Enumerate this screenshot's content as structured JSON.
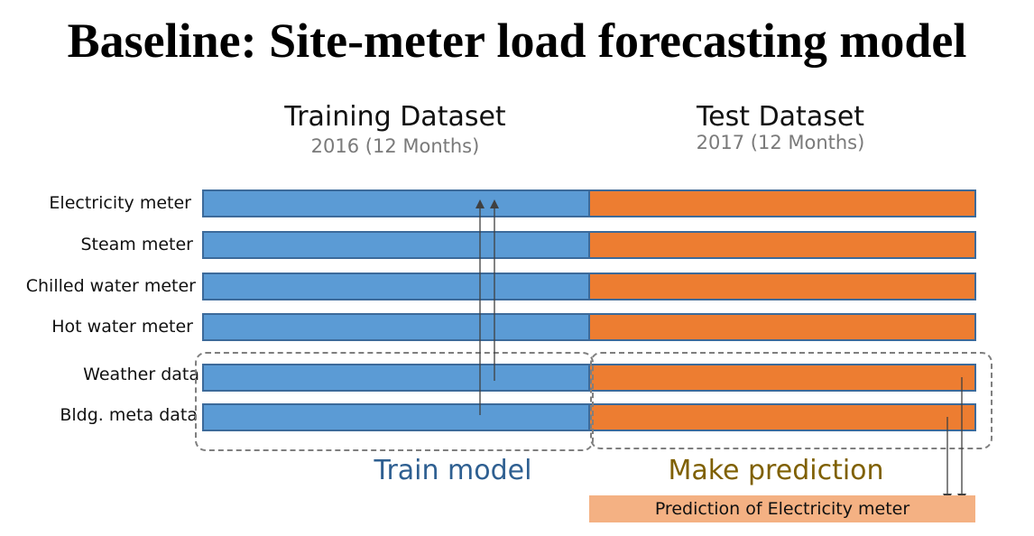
{
  "title": "Baseline: Site-meter load forecasting model",
  "training": {
    "title": "Training Dataset",
    "subtitle": "2016 (12 Months)"
  },
  "test": {
    "title": "Test Dataset",
    "subtitle": "2017 (12 Months)"
  },
  "rows": [
    {
      "label": "Electricity meter"
    },
    {
      "label": "Steam meter"
    },
    {
      "label": "Chilled water meter"
    },
    {
      "label": "Hot water meter"
    },
    {
      "label": "Weather data"
    },
    {
      "label": "Bldg. meta data"
    }
  ],
  "phases": {
    "train": "Train model",
    "predict": "Make prediction"
  },
  "prediction_box": "Prediction of Electricity meter",
  "colors": {
    "train_bar": "#5b9bd5",
    "test_bar": "#ed7d31",
    "prediction_box": "#f4b183",
    "train_label": "#2e5f91",
    "predict_label": "#7f6000"
  }
}
